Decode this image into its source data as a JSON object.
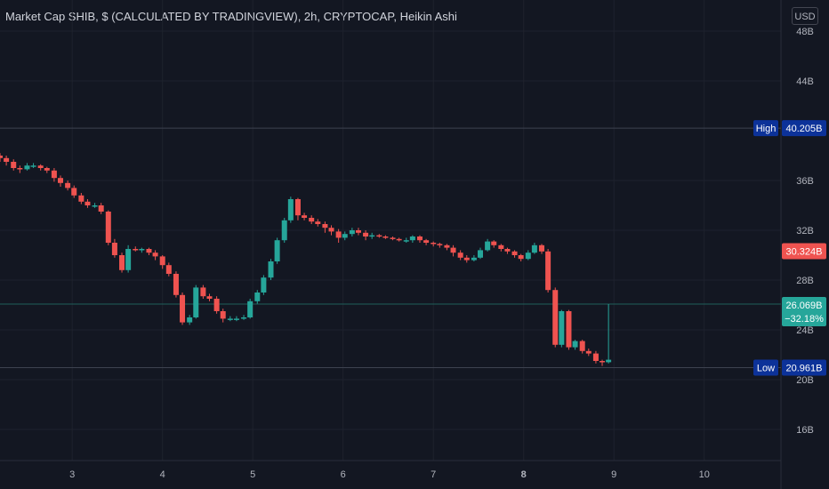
{
  "header": {
    "title": "Market Cap SHIB, $ (CALCULATED BY TRADINGVIEW), 2h, CRYPTOCAP, Heikin Ashi",
    "currency": "USD"
  },
  "chart_data": {
    "type": "candlestick",
    "style": "Heikin Ashi",
    "symbol": "Market Cap SHIB",
    "interval": "2h",
    "ylim": [
      13.5,
      50.5
    ],
    "y_ticks": [
      {
        "value": 16,
        "label": "16B"
      },
      {
        "value": 20,
        "label": "20B"
      },
      {
        "value": 24,
        "label": "24B"
      },
      {
        "value": 28,
        "label": "28B"
      },
      {
        "value": 32,
        "label": "32B"
      },
      {
        "value": 36,
        "label": "36B"
      },
      {
        "value": 44,
        "label": "44B"
      },
      {
        "value": 48,
        "label": "48B"
      }
    ],
    "x_range": [
      2.2,
      10.85
    ],
    "x_ticks": [
      {
        "value": 3,
        "label": "3",
        "bold": false
      },
      {
        "value": 4,
        "label": "4",
        "bold": false
      },
      {
        "value": 5,
        "label": "5",
        "bold": false
      },
      {
        "value": 6,
        "label": "6",
        "bold": false
      },
      {
        "value": 7,
        "label": "7",
        "bold": false
      },
      {
        "value": 8,
        "label": "8",
        "bold": true
      },
      {
        "value": 9,
        "label": "9",
        "bold": false
      },
      {
        "value": 10,
        "label": "10",
        "bold": false
      }
    ],
    "colors": {
      "up": "#26a69a",
      "down": "#ef5350",
      "background": "#131722",
      "grid": "#1e222d"
    },
    "levels": {
      "high": {
        "label": "High",
        "value_label": "40.205B",
        "value": 40.205,
        "color": "#0c3299"
      },
      "low": {
        "label": "Low",
        "value_label": "20.961B",
        "value": 20.961,
        "color": "#0c3299"
      },
      "prev_close": {
        "value_label": "30.324B",
        "value": 30.324,
        "color": "#ef5350"
      },
      "last": {
        "value_label": "26.069B",
        "change_label": "−32.18%",
        "value": 26.069,
        "color": "#26a69a"
      }
    },
    "candles": [
      [
        2.2,
        38.0,
        37.8,
        38.2,
        37.5
      ],
      [
        2.27,
        37.8,
        37.5,
        38.0,
        37.2
      ],
      [
        2.35,
        37.5,
        37.0,
        37.7,
        36.8
      ],
      [
        2.42,
        37.0,
        36.9,
        37.2,
        36.6
      ],
      [
        2.5,
        36.9,
        37.2,
        37.4,
        36.8
      ],
      [
        2.57,
        37.2,
        37.2,
        37.4,
        37.0
      ],
      [
        2.65,
        37.2,
        37.0,
        37.3,
        36.8
      ],
      [
        2.72,
        37.0,
        36.8,
        37.1,
        36.6
      ],
      [
        2.8,
        36.8,
        36.2,
        37.0,
        35.9
      ],
      [
        2.87,
        36.2,
        35.8,
        36.4,
        35.5
      ],
      [
        2.95,
        35.8,
        35.4,
        36.0,
        35.2
      ],
      [
        3.02,
        35.4,
        34.8,
        35.6,
        34.6
      ],
      [
        3.1,
        34.8,
        34.3,
        35.0,
        34.1
      ],
      [
        3.17,
        34.3,
        34.0,
        34.5,
        33.8
      ],
      [
        3.25,
        34.0,
        34.0,
        34.2,
        33.8
      ],
      [
        3.32,
        34.0,
        33.5,
        34.2,
        33.3
      ],
      [
        3.4,
        33.5,
        31.0,
        33.6,
        30.8
      ],
      [
        3.47,
        31.0,
        30.0,
        31.3,
        29.8
      ],
      [
        3.55,
        30.0,
        28.8,
        30.2,
        28.6
      ],
      [
        3.62,
        28.8,
        30.5,
        30.8,
        28.6
      ],
      [
        3.7,
        30.5,
        30.4,
        30.7,
        30.3
      ],
      [
        3.77,
        30.4,
        30.5,
        30.6,
        30.2
      ],
      [
        3.85,
        30.5,
        30.2,
        30.6,
        30.0
      ],
      [
        3.92,
        30.2,
        29.9,
        30.4,
        29.6
      ],
      [
        4.0,
        29.9,
        29.2,
        30.0,
        28.9
      ],
      [
        4.07,
        29.2,
        28.5,
        29.4,
        28.3
      ],
      [
        4.15,
        28.5,
        26.8,
        28.7,
        26.6
      ],
      [
        4.22,
        26.8,
        24.6,
        27.0,
        24.4
      ],
      [
        4.3,
        24.6,
        25.0,
        25.2,
        24.4
      ],
      [
        4.37,
        25.0,
        27.4,
        27.6,
        24.9
      ],
      [
        4.45,
        27.4,
        26.7,
        27.6,
        26.5
      ],
      [
        4.52,
        26.7,
        26.5,
        26.9,
        26.3
      ],
      [
        4.6,
        26.5,
        25.5,
        26.7,
        25.3
      ],
      [
        4.67,
        25.5,
        24.9,
        25.7,
        24.6
      ],
      [
        4.75,
        24.9,
        24.9,
        25.1,
        24.7
      ],
      [
        4.82,
        24.9,
        24.9,
        25.1,
        24.7
      ],
      [
        4.9,
        24.9,
        25.0,
        25.2,
        24.8
      ],
      [
        4.97,
        25.0,
        26.3,
        26.5,
        24.9
      ],
      [
        5.05,
        26.3,
        27.0,
        27.2,
        26.1
      ],
      [
        5.12,
        27.0,
        28.2,
        28.4,
        26.8
      ],
      [
        5.2,
        28.2,
        29.5,
        29.7,
        28.0
      ],
      [
        5.27,
        29.5,
        31.2,
        31.4,
        29.3
      ],
      [
        5.35,
        31.2,
        32.8,
        33.0,
        31.0
      ],
      [
        5.42,
        32.8,
        34.5,
        34.7,
        32.6
      ],
      [
        5.5,
        34.5,
        33.2,
        34.6,
        32.8
      ],
      [
        5.57,
        33.2,
        33.0,
        33.4,
        32.8
      ],
      [
        5.65,
        33.0,
        32.7,
        33.2,
        32.5
      ],
      [
        5.72,
        32.7,
        32.5,
        32.9,
        32.3
      ],
      [
        5.8,
        32.5,
        32.2,
        32.7,
        31.8
      ],
      [
        5.87,
        32.2,
        31.9,
        32.4,
        31.6
      ],
      [
        5.95,
        31.9,
        31.4,
        32.1,
        31.0
      ],
      [
        6.02,
        31.4,
        31.7,
        31.9,
        31.2
      ],
      [
        6.1,
        31.7,
        32.0,
        32.2,
        31.5
      ],
      [
        6.17,
        32.0,
        31.8,
        32.2,
        31.6
      ],
      [
        6.25,
        31.8,
        31.5,
        32.0,
        31.2
      ],
      [
        6.32,
        31.5,
        31.6,
        31.8,
        31.3
      ],
      [
        6.4,
        31.6,
        31.5,
        31.7,
        31.4
      ],
      [
        6.47,
        31.5,
        31.4,
        31.6,
        31.3
      ],
      [
        6.55,
        31.4,
        31.3,
        31.5,
        31.2
      ],
      [
        6.62,
        31.3,
        31.2,
        31.4,
        31.1
      ],
      [
        6.7,
        31.2,
        31.2,
        31.4,
        31.0
      ],
      [
        6.77,
        31.2,
        31.5,
        31.6,
        31.0
      ],
      [
        6.85,
        31.5,
        31.2,
        31.6,
        31.0
      ],
      [
        6.92,
        31.2,
        31.0,
        31.3,
        30.8
      ],
      [
        7.0,
        31.0,
        30.9,
        31.1,
        30.7
      ],
      [
        7.07,
        30.9,
        30.8,
        31.0,
        30.6
      ],
      [
        7.15,
        30.8,
        30.6,
        30.9,
        30.4
      ],
      [
        7.22,
        30.6,
        30.2,
        30.8,
        29.9
      ],
      [
        7.3,
        30.2,
        29.8,
        30.4,
        29.6
      ],
      [
        7.37,
        29.8,
        29.6,
        30.0,
        29.4
      ],
      [
        7.45,
        29.6,
        29.8,
        30.0,
        29.5
      ],
      [
        7.52,
        29.8,
        30.4,
        30.6,
        29.7
      ],
      [
        7.6,
        30.4,
        31.1,
        31.3,
        30.3
      ],
      [
        7.67,
        31.1,
        30.8,
        31.2,
        30.6
      ],
      [
        7.75,
        30.8,
        30.5,
        30.9,
        30.3
      ],
      [
        7.82,
        30.5,
        30.3,
        30.6,
        30.1
      ],
      [
        7.9,
        30.3,
        30.0,
        30.4,
        29.8
      ],
      [
        7.97,
        30.0,
        29.7,
        30.1,
        29.5
      ],
      [
        8.05,
        29.7,
        30.2,
        30.4,
        29.6
      ],
      [
        8.12,
        30.2,
        30.8,
        31.0,
        30.1
      ],
      [
        8.2,
        30.8,
        30.3,
        30.9,
        30.1
      ],
      [
        8.27,
        30.3,
        27.2,
        30.5,
        27.0
      ],
      [
        8.35,
        27.2,
        22.8,
        27.4,
        22.6
      ],
      [
        8.42,
        22.8,
        25.5,
        25.6,
        22.6
      ],
      [
        8.5,
        25.5,
        22.6,
        25.6,
        22.4
      ],
      [
        8.57,
        22.6,
        23.1,
        23.2,
        22.4
      ],
      [
        8.65,
        23.1,
        22.3,
        23.2,
        22.1
      ],
      [
        8.72,
        22.3,
        22.1,
        22.5,
        21.9
      ],
      [
        8.8,
        22.1,
        21.5,
        22.3,
        21.3
      ],
      [
        8.87,
        21.5,
        21.4,
        21.6,
        21.1
      ],
      [
        8.94,
        21.4,
        21.6,
        26.069,
        21.3
      ]
    ]
  }
}
